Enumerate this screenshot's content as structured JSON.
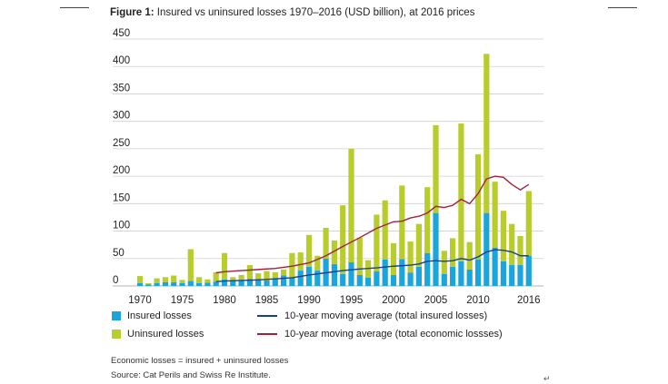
{
  "title": {
    "prefix": "Figure 1:",
    "text": "Insured vs uninsured losses 1970–2016 (USD billion), at 2016 prices"
  },
  "colors": {
    "insured": "#1aa6dc",
    "uninsured": "#b8cc2c",
    "avg_insured": "#1c3f8c",
    "avg_economic": "#a3203a"
  },
  "legend": {
    "insured": "Insured losses",
    "uninsured": "Uninsured losses",
    "avg_insured": "10-year moving average (total insured losses)",
    "avg_economic": "10-year moving average (total economic lossses)"
  },
  "notes": {
    "economic": "Economic losses = insured + uninsured losses",
    "source": "Source: Cat Perils and Swiss Re Institute."
  },
  "return_mark": "↵",
  "chart_data": {
    "type": "bar",
    "stacked": true,
    "title": "Insured vs uninsured losses 1970–2016 (USD billion), at 2016 prices",
    "ylim": [
      0,
      450
    ],
    "yticks": [
      0,
      50,
      100,
      150,
      200,
      250,
      300,
      350,
      400,
      450
    ],
    "xtick_labels": [
      "1970",
      "1975",
      "1980",
      "1985",
      "1990",
      "1995",
      "2000",
      "2005",
      "2010",
      "2016"
    ],
    "grid": true,
    "legend_position": "bottom",
    "categories": [
      1970,
      1971,
      1972,
      1973,
      1974,
      1975,
      1976,
      1977,
      1978,
      1979,
      1980,
      1981,
      1982,
      1983,
      1984,
      1985,
      1986,
      1987,
      1988,
      1989,
      1990,
      1991,
      1992,
      1993,
      1994,
      1995,
      1996,
      1997,
      1998,
      1999,
      2000,
      2001,
      2002,
      2003,
      2004,
      2005,
      2006,
      2007,
      2008,
      2009,
      2010,
      2011,
      2012,
      2013,
      2014,
      2015,
      2016
    ],
    "series": [
      {
        "name": "Insured losses",
        "kind": "bar",
        "values": [
          5,
          3,
          5,
          7,
          7,
          5,
          9,
          5,
          6,
          8,
          12,
          10,
          10,
          13,
          13,
          10,
          13,
          19,
          15,
          28,
          35,
          28,
          50,
          40,
          22,
          43,
          20,
          15,
          27,
          48,
          20,
          49,
          24,
          35,
          60,
          133,
          22,
          35,
          45,
          30,
          48,
          133,
          70,
          45,
          38,
          38,
          55
        ]
      },
      {
        "name": "Uninsured losses",
        "kind": "bar",
        "values": [
          13,
          2,
          9,
          9,
          12,
          6,
          58,
          11,
          6,
          17,
          48,
          6,
          10,
          25,
          10,
          17,
          12,
          11,
          45,
          33,
          58,
          27,
          56,
          43,
          125,
          207,
          68,
          32,
          103,
          108,
          58,
          134,
          57,
          78,
          120,
          160,
          42,
          52,
          251,
          50,
          192,
          290,
          120,
          92,
          75,
          53,
          118
        ]
      },
      {
        "name": "10-year moving average (total insured losses)",
        "kind": "line",
        "x": [
          1979,
          1980,
          1982,
          1984,
          1986,
          1988,
          1990,
          1992,
          1994,
          1996,
          1998,
          2000,
          2002,
          2003,
          2004,
          2005,
          2006,
          2007,
          2008,
          2009,
          2010,
          2011,
          2012,
          2013,
          2014,
          2015,
          2016
        ],
        "values": [
          8,
          9,
          10,
          11,
          13,
          15,
          20,
          24,
          28,
          31,
          33,
          36,
          38,
          40,
          45,
          46,
          45,
          46,
          50,
          47,
          53,
          62,
          66,
          65,
          62,
          55,
          55
        ]
      },
      {
        "name": "10-year moving average (total economic lossses)",
        "kind": "line",
        "x": [
          1979,
          1980,
          1982,
          1984,
          1986,
          1988,
          1990,
          1992,
          1994,
          1996,
          1998,
          2000,
          2001,
          2002,
          2003,
          2004,
          2005,
          2006,
          2007,
          2008,
          2009,
          2010,
          2011,
          2012,
          2013,
          2014,
          2015,
          2016
        ],
        "values": [
          24,
          26,
          28,
          30,
          32,
          36,
          42,
          55,
          72,
          88,
          105,
          117,
          118,
          124,
          127,
          133,
          145,
          143,
          147,
          158,
          150,
          168,
          195,
          200,
          198,
          185,
          175,
          185
        ]
      }
    ]
  }
}
